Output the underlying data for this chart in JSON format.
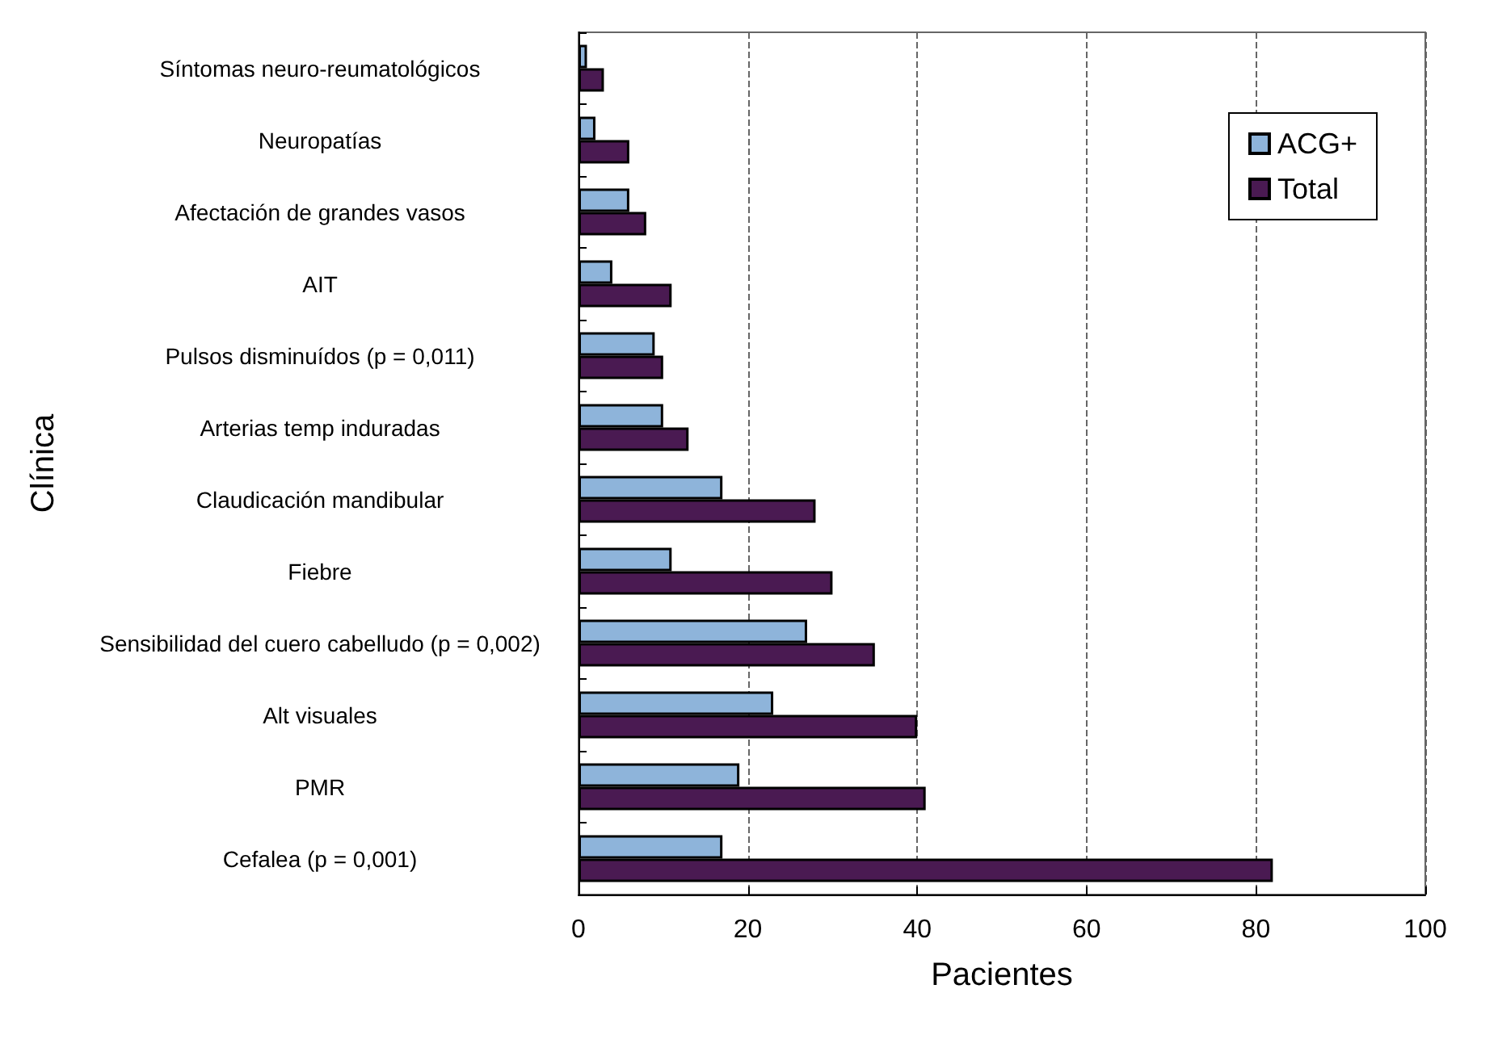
{
  "chart_data": {
    "type": "bar",
    "orientation": "horizontal",
    "xlabel": "Pacientes",
    "ylabel": "Clínica",
    "categories": [
      "Síntomas neuro-reumatológicos",
      "Neuropatías",
      "Afectación de grandes vasos",
      "AIT",
      "Pulsos disminuídos (p = 0,011)",
      "Arterias temp induradas",
      "Claudicación mandibular",
      "Fiebre",
      "Sensibilidad del cuero cabelludo (p = 0,002)",
      "Alt visuales",
      "PMR",
      "Cefalea (p = 0,001)"
    ],
    "series": [
      {
        "name": "ACG+",
        "color": "#8eb4da",
        "values": [
          1,
          2,
          6,
          4,
          9,
          10,
          17,
          11,
          27,
          23,
          19,
          17
        ]
      },
      {
        "name": "Total",
        "color": "#4a1a52",
        "values": [
          3,
          6,
          8,
          11,
          10,
          13,
          28,
          30,
          35,
          40,
          41,
          82
        ]
      }
    ],
    "xlim": [
      0,
      100
    ],
    "xticks": [
      0,
      20,
      40,
      60,
      80,
      100
    ],
    "grid": "x",
    "legend": "top right"
  }
}
